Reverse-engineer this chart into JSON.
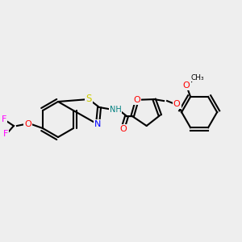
{
  "bg_color": "#eeeeee",
  "bond_color": "#000000",
  "bond_width": 1.5,
  "atom_colors": {
    "S": "#cccc00",
    "N": "#0000ff",
    "O": "#ff0000",
    "F": "#ff00ff",
    "H": "#008080",
    "C": "#000000"
  },
  "font_size": 7.5,
  "figsize": [
    3.0,
    3.0
  ],
  "dpi": 100
}
